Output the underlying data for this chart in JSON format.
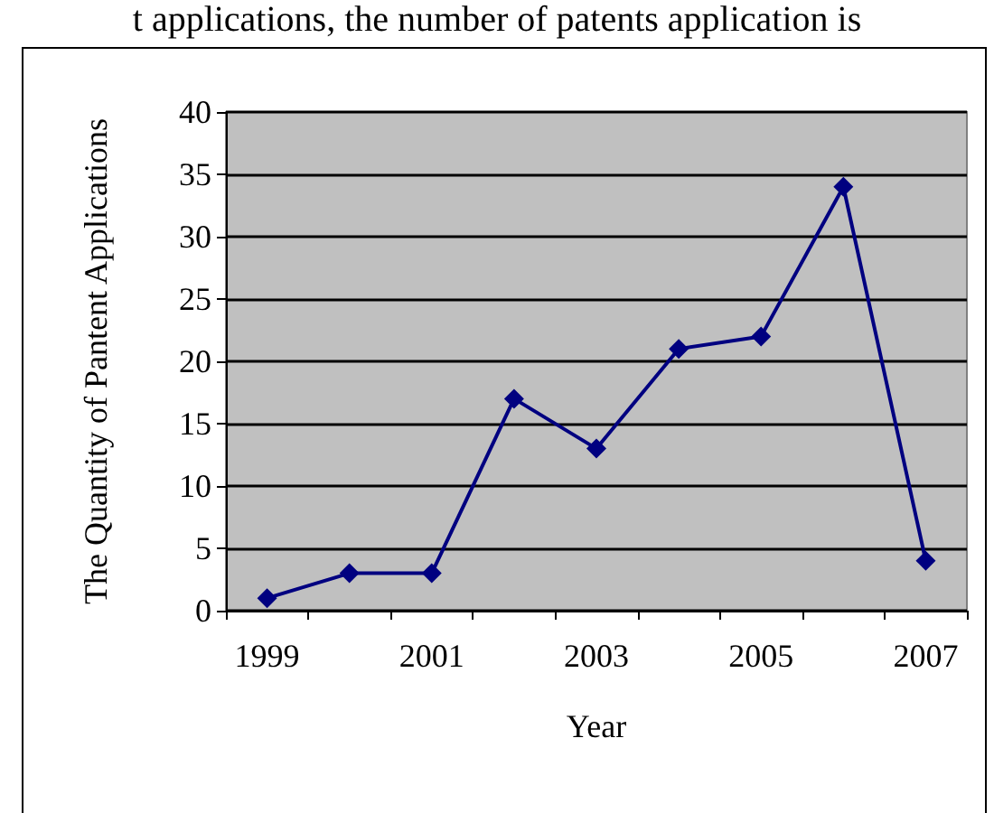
{
  "chart_data": {
    "type": "line",
    "annotations": [
      "t applications, the number of patents application is"
    ],
    "xlabel": "Year",
    "ylabel": "The Quantity of Pantent Applications",
    "categories": [
      "1999",
      null,
      "2001",
      null,
      "2003",
      null,
      "2005",
      null,
      "2007"
    ],
    "series": [
      {
        "color": "#000080",
        "values": [
          1,
          3,
          3,
          17,
          13,
          21,
          22,
          34,
          4
        ]
      }
    ],
    "ylim": [
      0,
      40
    ],
    "yticks": [
      0,
      5,
      10,
      15,
      20,
      25,
      30,
      35,
      40
    ],
    "grid": "y",
    "marker": "diamond",
    "line_style": "solid"
  }
}
